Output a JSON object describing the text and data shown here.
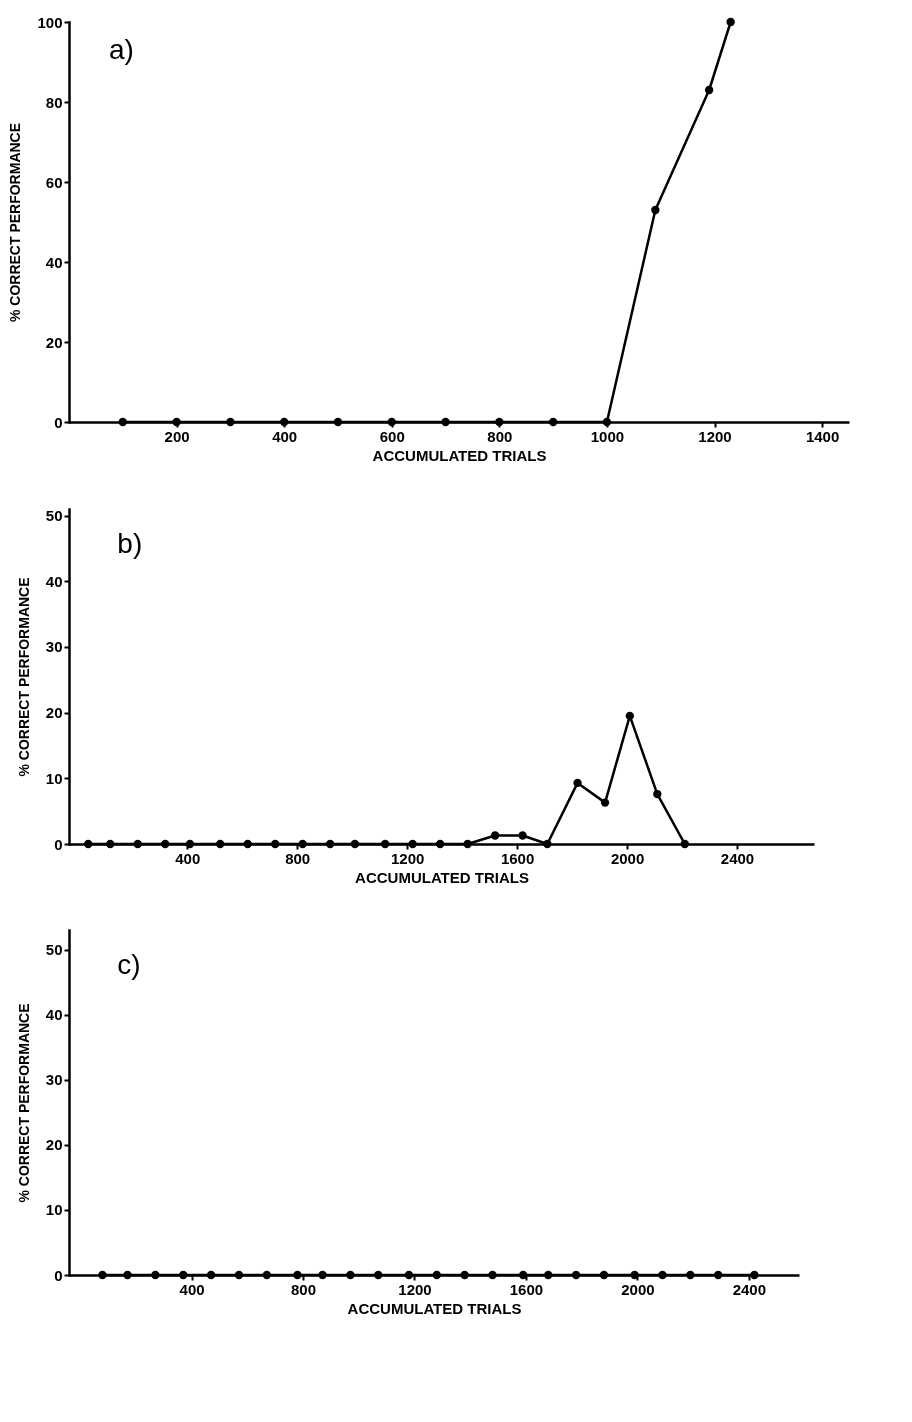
{
  "chart_data": [
    {
      "type": "line",
      "title": "a)",
      "xlabel": "ACCUMULATED          TRIALS",
      "ylabel": "% CORRECT PERFORMANCE",
      "x": [
        100,
        200,
        300,
        400,
        500,
        600,
        700,
        800,
        900,
        1000,
        1090,
        1190,
        1230
      ],
      "series": [
        {
          "color": "#000000",
          "values": [
            0,
            0,
            0,
            0,
            0,
            0,
            0,
            0,
            0,
            0,
            53,
            83,
            100
          ]
        }
      ],
      "xlim": [
        0,
        1450
      ],
      "xticks": [
        200,
        400,
        600,
        800,
        1000,
        1200,
        1400
      ],
      "ylim": [
        0,
        100
      ],
      "yticks": [
        0,
        20,
        40,
        60,
        80,
        100
      ],
      "marker": "circle",
      "line_style": "solid"
    },
    {
      "type": "line",
      "title": "b)",
      "xlabel": "ACCUMULATED          TRIALS",
      "ylabel": "% CORRECT PERFORMANCE",
      "x": [
        40,
        120,
        220,
        320,
        410,
        520,
        620,
        720,
        820,
        920,
        1010,
        1120,
        1220,
        1320,
        1420,
        1520,
        1620,
        1710,
        1820,
        1920,
        2010,
        2110,
        2210
      ],
      "series": [
        {
          "color": "#000000",
          "values": [
            0,
            0,
            0,
            0,
            0,
            0,
            0,
            0,
            0,
            0,
            0,
            0,
            0,
            0,
            0,
            1.3,
            1.3,
            0,
            9.3,
            6.3,
            19.5,
            7.6,
            0
          ]
        }
      ],
      "xlim": [
        -30,
        2680
      ],
      "xticks": [
        400,
        800,
        1200,
        1600,
        2000,
        2400
      ],
      "ylim": [
        0,
        51
      ],
      "yticks": [
        0,
        10,
        20,
        30,
        40,
        50
      ],
      "marker": "circle",
      "line_style": "solid"
    },
    {
      "type": "line",
      "title": "c)",
      "xlabel": "ACCUMULATED          TRIALS",
      "ylabel": "% CORRECT PERFORMANCE",
      "x": [
        80,
        170,
        270,
        370,
        470,
        570,
        670,
        780,
        870,
        970,
        1070,
        1180,
        1280,
        1380,
        1480,
        1590,
        1680,
        1780,
        1880,
        1990,
        2090,
        2190,
        2290,
        2420
      ],
      "series": [
        {
          "color": "#000000",
          "values": [
            0,
            0,
            0,
            0,
            0,
            0,
            0,
            0,
            0,
            0,
            0,
            0,
            0,
            0,
            0,
            0,
            0,
            0,
            0,
            0,
            0,
            0,
            0,
            0
          ]
        }
      ],
      "xlim": [
        -40,
        2580
      ],
      "xticks": [
        400,
        800,
        1200,
        1600,
        2000,
        2400
      ],
      "ylim": [
        0,
        53
      ],
      "yticks": [
        0,
        10,
        20,
        30,
        40,
        50
      ],
      "marker": "circle",
      "line_style": "solid"
    }
  ]
}
